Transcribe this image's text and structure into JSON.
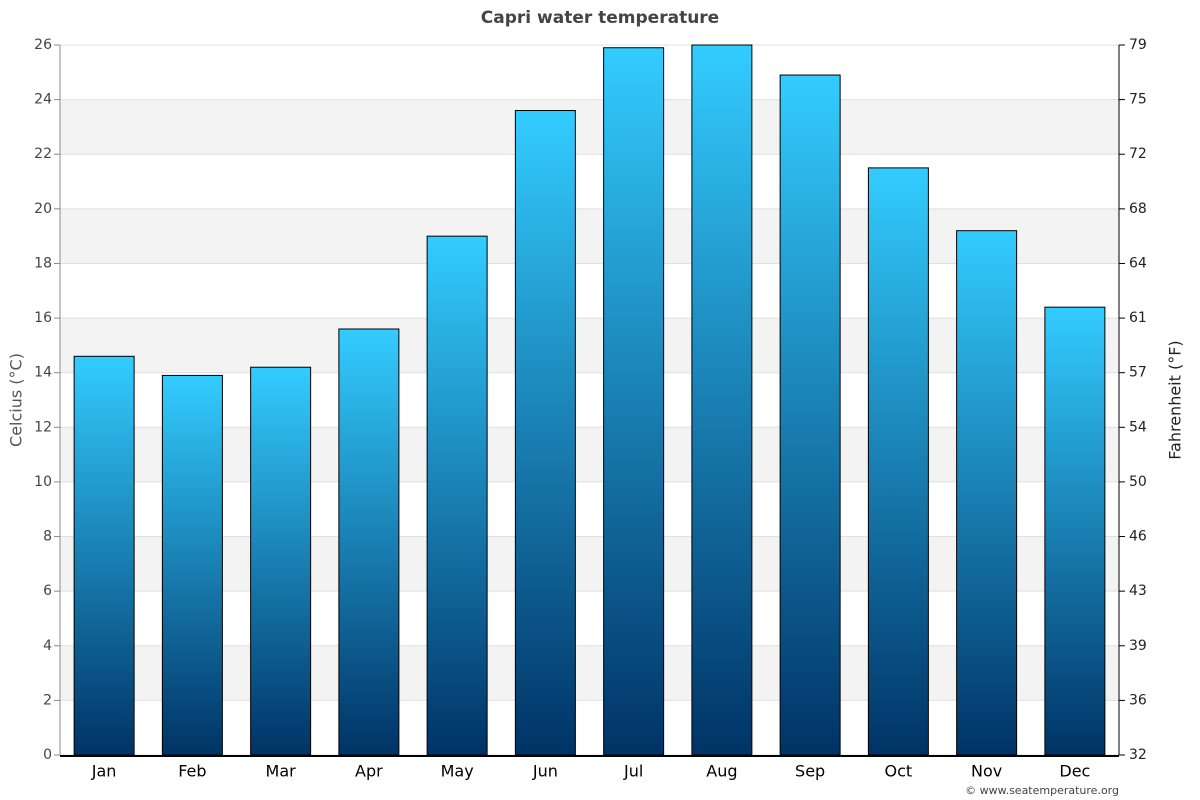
{
  "chart_data": {
    "type": "bar",
    "title": "Capri water temperature",
    "y_label": "Celcius (°C)",
    "y2_label": "Fahrenheit (°F)",
    "credit": "© www.seatemperature.org",
    "categories": [
      "Jan",
      "Feb",
      "Mar",
      "Apr",
      "May",
      "Jun",
      "Jul",
      "Aug",
      "Sep",
      "Oct",
      "Nov",
      "Dec"
    ],
    "values": [
      14.6,
      13.9,
      14.2,
      15.6,
      19.0,
      23.6,
      25.9,
      26.0,
      24.9,
      21.5,
      19.2,
      16.4
    ],
    "gradient": [
      "#33ccff",
      "#003366"
    ],
    "ylim": [
      0,
      26
    ],
    "yticks": [
      0,
      2,
      4,
      6,
      8,
      10,
      12,
      14,
      16,
      18,
      20,
      22,
      24,
      26
    ],
    "y2lim": [
      32,
      78.8
    ],
    "y2ticks": [
      32,
      {
        "value": 35.6,
        "label": "36"
      },
      {
        "value": 39.2,
        "label": "39"
      },
      {
        "value": 42.8,
        "label": "43"
      },
      {
        "value": 46.4,
        "label": "46"
      },
      50,
      {
        "value": 53.6,
        "label": "54"
      },
      {
        "value": 57.2,
        "label": "57"
      },
      {
        "value": 60.8,
        "label": "61"
      },
      {
        "value": 64.4,
        "label": "64"
      },
      68,
      {
        "value": 71.6,
        "label": "72"
      },
      {
        "value": 75.2,
        "label": "75"
      },
      {
        "value": 78.8,
        "label": "79"
      }
    ],
    "grid": true
  }
}
